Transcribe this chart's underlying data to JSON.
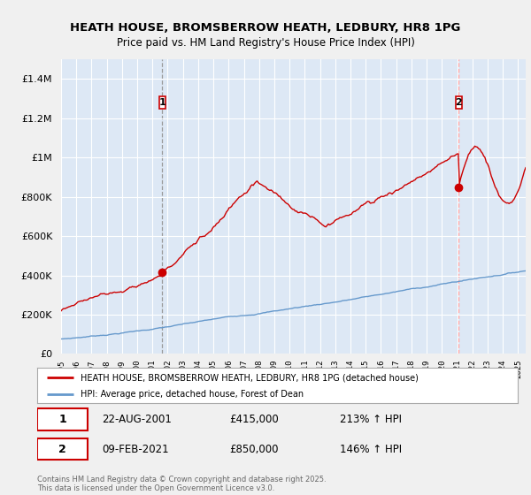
{
  "title": "HEATH HOUSE, BROMSBERROW HEATH, LEDBURY, HR8 1PG",
  "subtitle": "Price paid vs. HM Land Registry's House Price Index (HPI)",
  "ylim": [
    0,
    1500000
  ],
  "yticks": [
    0,
    200000,
    400000,
    600000,
    800000,
    1000000,
    1200000,
    1400000
  ],
  "year_start": 1995,
  "year_end": 2025,
  "legend_line1": "HEATH HOUSE, BROMSBERROW HEATH, LEDBURY, HR8 1PG (detached house)",
  "legend_line2": "HPI: Average price, detached house, Forest of Dean",
  "annotation1_date": "22-AUG-2001",
  "annotation1_price": "£415,000",
  "annotation1_hpi": "213% ↑ HPI",
  "annotation1_year": 2001.65,
  "annotation1_value": 415000,
  "annotation2_date": "09-FEB-2021",
  "annotation2_price": "£850,000",
  "annotation2_hpi": "146% ↑ HPI",
  "annotation2_year": 2021.1,
  "annotation2_value": 850000,
  "red_color": "#cc0000",
  "blue_color": "#6699cc",
  "footer": "Contains HM Land Registry data © Crown copyright and database right 2025.\nThis data is licensed under the Open Government Licence v3.0.",
  "background_color": "#f0f0f0",
  "plot_background": "#dde8f5"
}
